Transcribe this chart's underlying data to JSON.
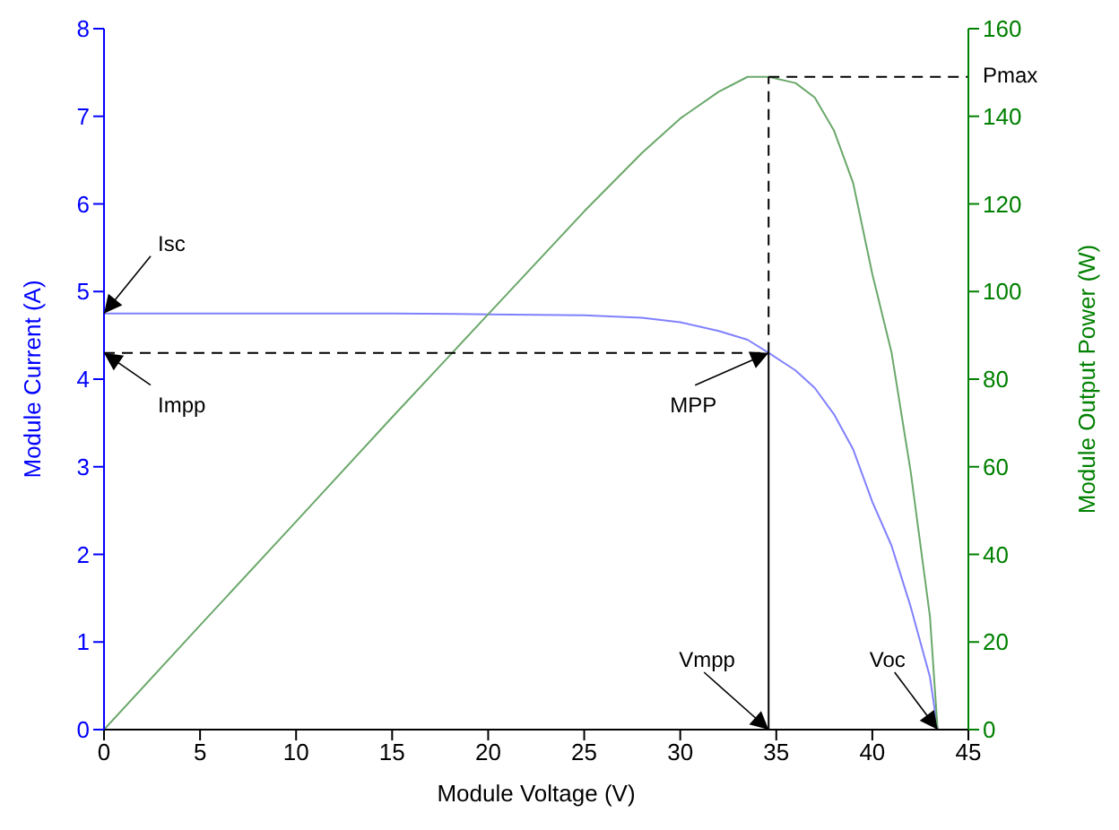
{
  "chart_data": {
    "type": "line",
    "xlabel": "Module Voltage (V)",
    "ylabel": "Module Current (A)",
    "y2label": "Module Output Power (W)",
    "xlim": [
      0,
      45
    ],
    "xticks": [
      0,
      5,
      10,
      15,
      20,
      25,
      30,
      35,
      40,
      45
    ],
    "ylim": [
      0,
      8
    ],
    "yticks": [
      0,
      1,
      2,
      3,
      4,
      5,
      6,
      7,
      8
    ],
    "y2lim": [
      0,
      160
    ],
    "y2ticks": [
      0,
      20,
      40,
      60,
      80,
      100,
      120,
      140,
      160
    ],
    "marker": "none",
    "series": [
      {
        "color": "#8080ff",
        "axis": "y",
        "x": [
          0,
          5,
          10,
          15,
          20,
          25,
          28,
          30,
          32,
          33.5,
          34.6,
          36,
          37,
          38,
          39,
          40,
          41,
          42,
          43,
          43.4
        ],
        "values": [
          4.75,
          4.75,
          4.75,
          4.75,
          4.74,
          4.73,
          4.7,
          4.65,
          4.55,
          4.45,
          4.3,
          4.1,
          3.9,
          3.6,
          3.2,
          2.6,
          2.1,
          1.4,
          0.6,
          0
        ]
      },
      {
        "color": "#6aa86a",
        "axis": "y2",
        "x": [
          0,
          5,
          10,
          15,
          20,
          25,
          28,
          30,
          32,
          33.5,
          34.6,
          36,
          37,
          38,
          39,
          40,
          41,
          42,
          43,
          43.4
        ],
        "values": [
          0,
          23.8,
          47.5,
          71.3,
          94.8,
          118.3,
          131.6,
          139.5,
          145.6,
          149,
          149,
          147.6,
          144.3,
          136.8,
          124.8,
          104,
          86.1,
          58.8,
          25.8,
          0
        ]
      },
      {
        "type": "line",
        "color": "#000000",
        "line_style": "dashed",
        "axis": "y",
        "x": [
          0,
          34.6
        ],
        "values": [
          4.3,
          4.3
        ]
      },
      {
        "type": "line",
        "color": "#000000",
        "line_style": "solid",
        "axis": "y",
        "x": [
          34.6,
          34.6
        ],
        "values": [
          0,
          4.3
        ]
      },
      {
        "type": "line",
        "color": "#000000",
        "line_style": "dashed",
        "axis": "y2",
        "x": [
          34.6,
          34.6
        ],
        "values": [
          86,
          149
        ]
      },
      {
        "type": "line",
        "color": "#000000",
        "line_style": "dashed",
        "axis": "y2",
        "x": [
          34.6,
          45
        ],
        "values": [
          149,
          149
        ]
      }
    ],
    "annotations": [
      {
        "text": "Isc",
        "x": 0,
        "y": 4.75
      },
      {
        "text": "Impp",
        "x": 0,
        "y": 4.3
      },
      {
        "text": "MPP",
        "x": 34.6,
        "y": 4.3
      },
      {
        "text": "Vmpp",
        "x": 34.6,
        "y": 0
      },
      {
        "text": "Voc",
        "x": 43.4,
        "y": 0
      },
      {
        "text": "Pmax",
        "x": 45,
        "y": 7.45
      }
    ]
  }
}
